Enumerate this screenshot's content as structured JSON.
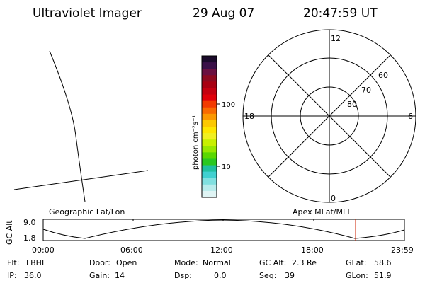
{
  "header": {
    "instrument": "Ultraviolet Imager",
    "date": "29 Aug 07",
    "time": "20:47:59 UT"
  },
  "colorbar": {
    "unit_label": "photon cm⁻²s⁻¹",
    "ticks": [
      "100",
      "10"
    ],
    "colors_top_to_bottom": [
      "#1a0a2a",
      "#3a1048",
      "#6a1040",
      "#8c0a20",
      "#a80012",
      "#c40010",
      "#e0000a",
      "#f23a00",
      "#f86a00",
      "#fb9800",
      "#fcc800",
      "#fde600",
      "#f0f020",
      "#c8f000",
      "#98e800",
      "#5ad800",
      "#2ac820",
      "#20c0a0",
      "#40d0d0",
      "#80e0e0",
      "#b8ecec",
      "#dff4f4"
    ]
  },
  "polar_plot": {
    "mlt_labels": {
      "top": "12",
      "left": "18",
      "right": "6",
      "bottom": "0"
    },
    "lat_labels": [
      "60",
      "70",
      "80"
    ]
  },
  "map_labels": {
    "left": "Geographic Lat/Lon",
    "right": "Apex MLat/MLT"
  },
  "altitude_strip": {
    "axis_label": "GC Alt",
    "y_ticks": [
      "9.0",
      "1.8"
    ],
    "x_ticks": [
      "00:00",
      "06:00",
      "12:00",
      "18:00",
      "23:59"
    ],
    "marker_color": "#cc2200"
  },
  "status": {
    "row1": [
      {
        "key": "Flt:",
        "val": "LBHL"
      },
      {
        "key": "Door:",
        "val": "Open"
      },
      {
        "key": "Mode:",
        "val": "Normal"
      },
      {
        "key": "GC Alt:",
        "val": "2.3 Re"
      },
      {
        "key": "GLat:",
        "val": "58.6"
      }
    ],
    "row2": [
      {
        "key": "IP:",
        "val": "36.0"
      },
      {
        "key": "Gain:",
        "val": "14"
      },
      {
        "key": "Dsp:",
        "val": "0.0"
      },
      {
        "key": "Seq:",
        "val": "39"
      },
      {
        "key": "GLon:",
        "val": "51.9"
      }
    ]
  }
}
